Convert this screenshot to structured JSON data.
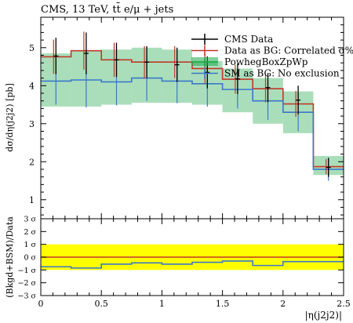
{
  "chart_data": [
    {
      "type": "line",
      "title": "CMS, 13 TeV, tt̄ e/μ + jets",
      "ylabel": "dσ/dη(j2j2) [pb]",
      "xlim": [
        0,
        2.5
      ],
      "ylim": [
        0.5,
        5.8
      ],
      "yticks": [
        1,
        2,
        3,
        4,
        5
      ],
      "y_minor_step": 0.2,
      "bin_edges": [
        0,
        0.25,
        0.5,
        0.75,
        1.0,
        1.25,
        1.5,
        1.75,
        2.0,
        2.25,
        2.5
      ],
      "legend_position": "top-right",
      "series": [
        {
          "name": "CMS Data",
          "kind": "points",
          "color": "#000000",
          "x": [
            0.125,
            0.375,
            0.625,
            0.875,
            1.125,
            1.375,
            1.625,
            1.875,
            2.125,
            2.375
          ],
          "y": [
            4.78,
            4.85,
            4.68,
            4.62,
            4.55,
            4.35,
            4.18,
            3.95,
            3.62,
            1.85
          ],
          "yerr": [
            0.48,
            0.55,
            0.45,
            0.42,
            0.45,
            0.42,
            0.4,
            0.38,
            0.38,
            0.25
          ]
        },
        {
          "name": "Data as BG: Correlated σ%",
          "kind": "step",
          "color": "#c0392b",
          "values": [
            4.76,
            4.92,
            4.68,
            4.62,
            4.62,
            4.45,
            4.17,
            3.92,
            3.52,
            1.87
          ],
          "yerr": [
            0.45,
            0.5,
            0.45,
            0.42,
            0.42,
            0.4,
            0.38,
            0.36,
            0.34,
            0.2
          ]
        },
        {
          "name": "PowhegBoxZpWp",
          "kind": "band",
          "color": "#1fa84a",
          "values": [
            4.76,
            4.92,
            4.68,
            4.62,
            4.62,
            4.45,
            4.17,
            3.92,
            3.52,
            1.87
          ],
          "band_low": [
            3.45,
            3.45,
            3.5,
            3.55,
            3.55,
            3.5,
            3.3,
            3.0,
            2.75,
            1.65
          ],
          "band_high": [
            4.85,
            4.92,
            4.95,
            5.0,
            4.95,
            4.65,
            4.45,
            4.2,
            3.85,
            2.15
          ]
        },
        {
          "name": "SM as BG: No exclusion",
          "kind": "step",
          "color": "#3a78c9",
          "values": [
            4.12,
            4.15,
            4.1,
            4.2,
            4.12,
            4.05,
            3.9,
            3.6,
            3.3,
            1.8
          ],
          "yerr": [
            0.62,
            0.72,
            0.62,
            0.6,
            0.58,
            0.6,
            0.5,
            0.5,
            0.5,
            0.3
          ]
        }
      ]
    },
    {
      "type": "line",
      "ylabel": "(Bkgd+BSM)/Data",
      "xlabel": "|η(j2j2)|",
      "xlim": [
        0,
        2.5
      ],
      "ylim": [
        -3,
        3
      ],
      "xticks": [
        "0",
        "0.5",
        "1",
        "1.5",
        "2",
        "2.5"
      ],
      "ytick_labels": [
        "3 σ",
        "2 σ",
        "1 σ",
        "0 σ",
        "−1 σ",
        "−2 σ",
        "−3 σ"
      ],
      "yticks": [
        3,
        2,
        1,
        0,
        -1,
        -2,
        -3
      ],
      "yellow_band": [
        -1,
        1
      ],
      "yellow_color": "#ffff00",
      "series": [
        {
          "name": "Data as BG: Correlated σ%",
          "kind": "step",
          "color": "#c0392b",
          "values": [
            0,
            0,
            0,
            0,
            0,
            0,
            0,
            0,
            0,
            0
          ]
        },
        {
          "name": "SM as BG: No exclusion",
          "kind": "step",
          "color": "#3a78c9",
          "values": [
            -0.75,
            -0.85,
            -0.55,
            -0.45,
            -0.55,
            -0.4,
            -0.3,
            -0.65,
            -0.35,
            -0.35
          ]
        }
      ]
    }
  ]
}
